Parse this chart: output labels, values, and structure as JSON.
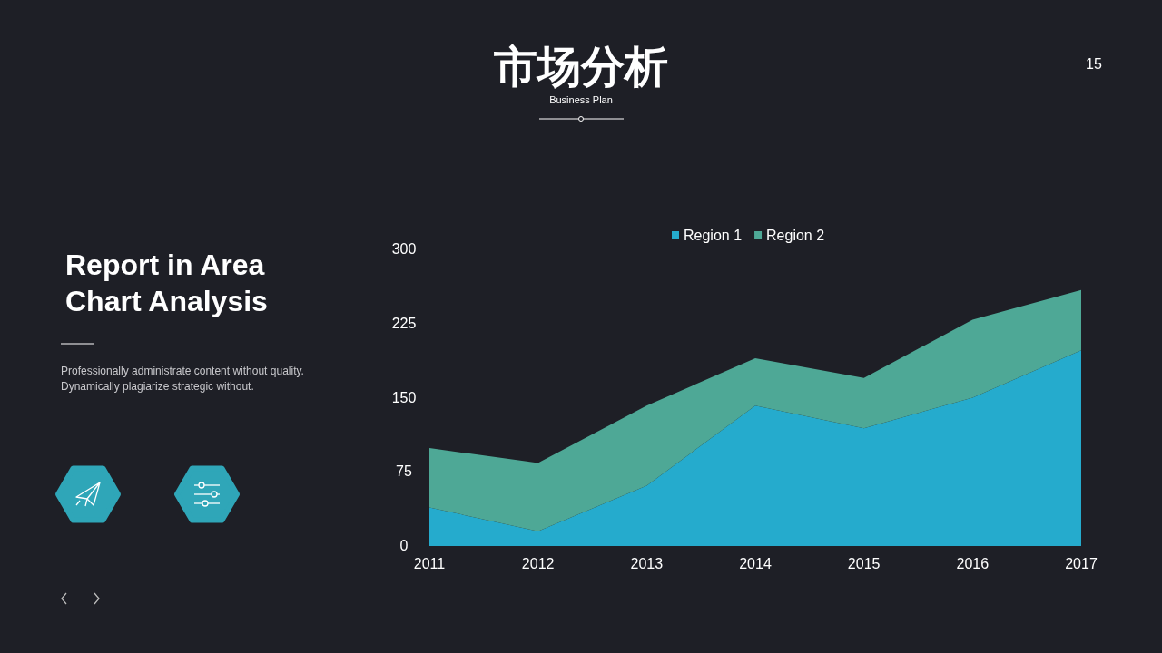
{
  "chart_data": {
    "type": "area",
    "title": "市场分析",
    "subtitle": "Business Plan",
    "annotations": [
      "15",
      "Report in Area Chart Analysis",
      "Professionally administrate content without quality. Dynamically plagiarize strategic without."
    ],
    "categories": [
      "2011",
      "2012",
      "2013",
      "2014",
      "2015",
      "2016",
      "2017"
    ],
    "series": [
      {
        "name": "Region 1",
        "color": "#25abcd",
        "values": [
          39,
          15,
          61,
          142,
          119,
          150,
          198
        ]
      },
      {
        "name": "Region 2",
        "color": "#4ea896",
        "values": [
          60,
          69,
          81,
          48,
          51,
          79,
          61
        ]
      }
    ],
    "stacked": true,
    "ylim": [
      0,
      300
    ],
    "yticks": [
      0,
      75,
      150,
      225,
      300
    ],
    "grid": false,
    "legend": "top"
  }
}
